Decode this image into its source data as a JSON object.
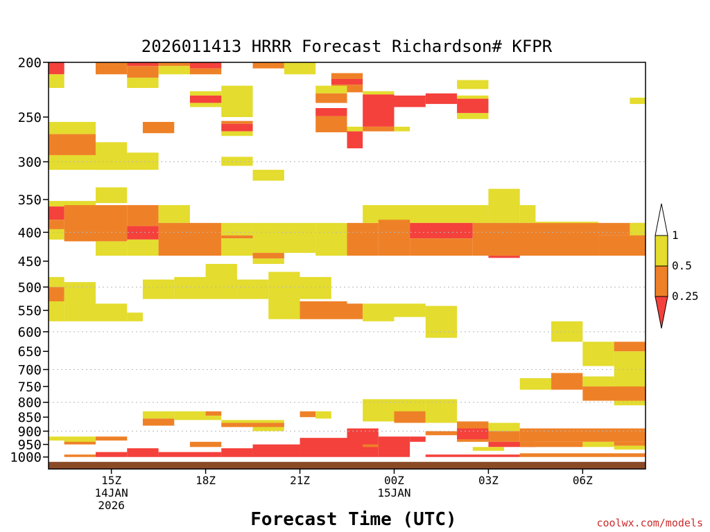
{
  "chart_data": {
    "type": "heatmap",
    "title": "2026011413 HRRR Forecast Richardson# KFPR",
    "xlabel": "Forecast Time (UTC)",
    "ylabel": "",
    "x_units": "forecast hour from 2026-01-14 13Z",
    "x_range": [
      13.0,
      32.0
    ],
    "y_axis": "pressure (hPa), inverted log",
    "y_range": [
      200,
      1050
    ],
    "y_ticks": [
      200,
      250,
      300,
      350,
      400,
      450,
      500,
      550,
      600,
      650,
      700,
      750,
      800,
      850,
      900,
      950,
      1000
    ],
    "y_tick_labels": [
      "200",
      "250",
      "300",
      "350",
      "400",
      "450",
      "500",
      "550",
      "600",
      "650",
      "700",
      "750",
      "800",
      "850",
      "900",
      "950",
      "1000"
    ],
    "y_gridlines": [
      300,
      400,
      500,
      600,
      700,
      800,
      900
    ],
    "x_ticks": [
      {
        "x": 15,
        "lines": [
          "15Z",
          "14JAN",
          "2026"
        ]
      },
      {
        "x": 18,
        "lines": [
          "18Z"
        ]
      },
      {
        "x": 21,
        "lines": [
          "21Z"
        ]
      },
      {
        "x": 24,
        "lines": [
          "00Z",
          "15JAN"
        ]
      },
      {
        "x": 27,
        "lines": [
          "03Z"
        ]
      },
      {
        "x": 30,
        "lines": [
          "06Z"
        ]
      }
    ],
    "legend": {
      "placement": "right",
      "labels": [
        "1",
        "0.5",
        "0.25"
      ],
      "bins": [
        {
          "name": "> 1",
          "color": "#ffffff"
        },
        {
          "name": "0.5 - 1",
          "color": "#e4dc2e"
        },
        {
          "name": "0.25 - 0.5",
          "color": "#ee8128"
        },
        {
          "name": "< 0.25",
          "color": "#f4413c"
        }
      ]
    },
    "colors": {
      "yellow": "#e4dc2e",
      "orange": "#ee8128",
      "red": "#f4413c",
      "surface": "#8a4a26"
    },
    "ground_pressure": 1020,
    "cells": [
      [
        13.0,
        13.5,
        200,
        210,
        "r"
      ],
      [
        13.0,
        13.5,
        210,
        222,
        "y"
      ],
      [
        14.5,
        15.5,
        200,
        210,
        "o"
      ],
      [
        15.5,
        16.5,
        200,
        203,
        "r"
      ],
      [
        15.5,
        16.5,
        203,
        213,
        "o"
      ],
      [
        15.5,
        16.5,
        213,
        222,
        "y"
      ],
      [
        16.5,
        17.5,
        200,
        203,
        "o"
      ],
      [
        16.5,
        17.5,
        203,
        210,
        "y"
      ],
      [
        17.5,
        18.5,
        200,
        205,
        "r"
      ],
      [
        17.5,
        18.5,
        205,
        210,
        "o"
      ],
      [
        19.5,
        20.5,
        200,
        205,
        "o"
      ],
      [
        20.5,
        21.5,
        200,
        210,
        "y"
      ],
      [
        22.0,
        23.0,
        209,
        214,
        "o"
      ],
      [
        22.0,
        23.0,
        214,
        219,
        "r"
      ],
      [
        22.0,
        23.0,
        219,
        226,
        "o"
      ],
      [
        21.5,
        22.5,
        220,
        227,
        "y"
      ],
      [
        18.5,
        19.5,
        220,
        250,
        "y"
      ],
      [
        17.5,
        18.5,
        225,
        229,
        "y"
      ],
      [
        17.5,
        18.5,
        229,
        236,
        "r"
      ],
      [
        17.5,
        18.5,
        236,
        240,
        "y"
      ],
      [
        21.5,
        22.5,
        227,
        236,
        "o"
      ],
      [
        23.0,
        24.0,
        225,
        228,
        "y"
      ],
      [
        23.0,
        24.0,
        228,
        260,
        "r"
      ],
      [
        24.0,
        25.0,
        229,
        240,
        "r"
      ],
      [
        25.0,
        26.0,
        227,
        237,
        "r"
      ],
      [
        26.0,
        27.0,
        215,
        223,
        "y"
      ],
      [
        26.0,
        27.0,
        229,
        232,
        "y"
      ],
      [
        26.0,
        27.0,
        232,
        246,
        "r"
      ],
      [
        26.0,
        27.0,
        246,
        252,
        "y"
      ],
      [
        31.5,
        32.0,
        231,
        237,
        "y"
      ],
      [
        21.5,
        22.5,
        241,
        249,
        "r"
      ],
      [
        21.5,
        22.5,
        249,
        266,
        "o"
      ],
      [
        18.5,
        19.5,
        254,
        257,
        "o"
      ],
      [
        18.5,
        19.5,
        257,
        265,
        "r"
      ],
      [
        18.5,
        19.5,
        265,
        270,
        "y"
      ],
      [
        13.0,
        14.5,
        255,
        268,
        "y"
      ],
      [
        13.0,
        14.5,
        268,
        292,
        "o"
      ],
      [
        14.0,
        14.5,
        292,
        292,
        "y"
      ],
      [
        16.0,
        17.0,
        255,
        267,
        "o"
      ],
      [
        22.5,
        23.0,
        260,
        265,
        "y"
      ],
      [
        22.5,
        23.0,
        265,
        284,
        "r"
      ],
      [
        23.0,
        24.0,
        260,
        265,
        "o"
      ],
      [
        24.0,
        24.5,
        260,
        265,
        "y"
      ],
      [
        14.5,
        15.5,
        277,
        310,
        "y"
      ],
      [
        13.0,
        15.5,
        292,
        310,
        "y"
      ],
      [
        15.5,
        16.5,
        289,
        310,
        "y"
      ],
      [
        18.5,
        19.5,
        294,
        305,
        "y"
      ],
      [
        19.5,
        20.5,
        310,
        324,
        "y"
      ],
      [
        14.5,
        15.5,
        333,
        355,
        "y"
      ],
      [
        13.0,
        14.5,
        352,
        360,
        "y"
      ],
      [
        13.0,
        13.5,
        360,
        380,
        "r"
      ],
      [
        13.0,
        13.5,
        380,
        395,
        "o"
      ],
      [
        13.0,
        13.5,
        395,
        412,
        "y"
      ],
      [
        13.5,
        15.5,
        358,
        415,
        "o"
      ],
      [
        15.5,
        16.5,
        358,
        390,
        "o"
      ],
      [
        15.5,
        16.5,
        390,
        412,
        "r"
      ],
      [
        15.5,
        16.5,
        412,
        440,
        "y"
      ],
      [
        14.5,
        15.5,
        415,
        440,
        "y"
      ],
      [
        16.5,
        17.5,
        358,
        385,
        "y"
      ],
      [
        16.5,
        18.5,
        385,
        440,
        "o"
      ],
      [
        18.5,
        19.5,
        385,
        405,
        "y"
      ],
      [
        18.5,
        19.5,
        405,
        410,
        "o"
      ],
      [
        18.5,
        19.5,
        410,
        440,
        "y"
      ],
      [
        19.5,
        21.5,
        385,
        435,
        "y"
      ],
      [
        19.5,
        20.5,
        435,
        445,
        "o"
      ],
      [
        19.5,
        20.5,
        445,
        455,
        "y"
      ],
      [
        21.5,
        22.5,
        385,
        440,
        "y"
      ],
      [
        22.5,
        23.5,
        385,
        440,
        "o"
      ],
      [
        23.0,
        27.0,
        358,
        385,
        "y"
      ],
      [
        27.0,
        28.0,
        335,
        385,
        "y"
      ],
      [
        28.0,
        28.5,
        358,
        385,
        "y"
      ],
      [
        23.5,
        24.5,
        380,
        440,
        "o"
      ],
      [
        24.5,
        26.5,
        385,
        410,
        "r"
      ],
      [
        24.5,
        26.5,
        410,
        440,
        "o"
      ],
      [
        26.5,
        30.5,
        385,
        440,
        "o"
      ],
      [
        28.5,
        30.5,
        383,
        385,
        "y"
      ],
      [
        30.5,
        32.0,
        385,
        405,
        "o"
      ],
      [
        31.5,
        32.0,
        385,
        405,
        "y"
      ],
      [
        30.5,
        32.0,
        405,
        440,
        "o"
      ],
      [
        27.0,
        28.0,
        440,
        444,
        "r"
      ],
      [
        18.0,
        19.0,
        455,
        500,
        "y"
      ],
      [
        17.0,
        18.0,
        480,
        525,
        "y"
      ],
      [
        16.0,
        17.0,
        485,
        525,
        "y"
      ],
      [
        18.0,
        19.0,
        480,
        525,
        "y"
      ],
      [
        19.0,
        20.0,
        485,
        525,
        "y"
      ],
      [
        20.0,
        21.0,
        470,
        570,
        "y"
      ],
      [
        21.0,
        22.0,
        480,
        525,
        "y"
      ],
      [
        13.0,
        13.5,
        480,
        500,
        "y"
      ],
      [
        13.0,
        13.5,
        500,
        530,
        "o"
      ],
      [
        13.0,
        13.5,
        530,
        575,
        "y"
      ],
      [
        13.5,
        14.5,
        490,
        575,
        "y"
      ],
      [
        14.5,
        15.5,
        535,
        575,
        "y"
      ],
      [
        15.5,
        16.0,
        555,
        575,
        "y"
      ],
      [
        21.0,
        22.5,
        530,
        570,
        "o"
      ],
      [
        22.5,
        23.0,
        535,
        570,
        "o"
      ],
      [
        23.0,
        24.0,
        535,
        575,
        "y"
      ],
      [
        24.0,
        25.0,
        535,
        565,
        "y"
      ],
      [
        25.0,
        26.0,
        540,
        615,
        "y"
      ],
      [
        29.0,
        30.0,
        575,
        625,
        "y"
      ],
      [
        30.0,
        31.0,
        625,
        690,
        "y"
      ],
      [
        31.0,
        32.0,
        625,
        650,
        "o"
      ],
      [
        31.0,
        32.0,
        650,
        810,
        "y"
      ],
      [
        28.0,
        29.0,
        725,
        760,
        "y"
      ],
      [
        29.0,
        30.0,
        710,
        760,
        "o"
      ],
      [
        30.0,
        31.0,
        720,
        750,
        "y"
      ],
      [
        30.0,
        32.0,
        750,
        795,
        "o"
      ],
      [
        16.0,
        17.0,
        830,
        855,
        "y"
      ],
      [
        16.0,
        17.0,
        855,
        880,
        "o"
      ],
      [
        17.0,
        18.0,
        830,
        860,
        "y"
      ],
      [
        18.0,
        18.5,
        830,
        845,
        "o"
      ],
      [
        18.0,
        18.5,
        845,
        860,
        "y"
      ],
      [
        18.5,
        20.5,
        860,
        870,
        "y"
      ],
      [
        18.5,
        19.0,
        870,
        885,
        "o"
      ],
      [
        19.0,
        20.5,
        870,
        885,
        "o"
      ],
      [
        19.5,
        20.5,
        885,
        900,
        "y"
      ],
      [
        21.0,
        21.5,
        830,
        850,
        "o"
      ],
      [
        21.5,
        22.0,
        830,
        855,
        "y"
      ],
      [
        23.0,
        25.0,
        790,
        865,
        "y"
      ],
      [
        24.0,
        25.0,
        830,
        870,
        "o"
      ],
      [
        25.0,
        26.0,
        790,
        870,
        "y"
      ],
      [
        26.0,
        27.0,
        865,
        940,
        "o"
      ],
      [
        26.0,
        27.0,
        890,
        930,
        "r"
      ],
      [
        27.0,
        28.0,
        870,
        900,
        "y"
      ],
      [
        27.0,
        28.0,
        900,
        940,
        "o"
      ],
      [
        27.0,
        28.5,
        940,
        960,
        "r"
      ],
      [
        28.0,
        32.0,
        890,
        940,
        "o"
      ],
      [
        28.0,
        30.0,
        940,
        960,
        "o"
      ],
      [
        30.0,
        31.0,
        940,
        960,
        "y"
      ],
      [
        31.0,
        32.0,
        940,
        955,
        "o"
      ],
      [
        31.0,
        32.0,
        955,
        970,
        "y"
      ],
      [
        13.0,
        13.5,
        920,
        935,
        "y"
      ],
      [
        13.5,
        14.5,
        920,
        950,
        "y"
      ],
      [
        13.5,
        14.5,
        940,
        950,
        "o"
      ],
      [
        14.5,
        15.5,
        920,
        935,
        "o"
      ],
      [
        17.5,
        18.5,
        940,
        960,
        "o"
      ],
      [
        22.5,
        23.5,
        890,
        1000,
        "r"
      ],
      [
        23.0,
        24.0,
        950,
        960,
        "o"
      ],
      [
        23.5,
        24.5,
        920,
        1000,
        "r"
      ],
      [
        24.5,
        25.0,
        920,
        940,
        "r"
      ],
      [
        25.0,
        26.0,
        900,
        915,
        "o"
      ],
      [
        26.5,
        27.5,
        960,
        975,
        "y"
      ],
      [
        13.5,
        14.5,
        990,
        1000,
        "o"
      ],
      [
        14.5,
        15.5,
        980,
        1000,
        "r"
      ],
      [
        15.5,
        16.5,
        965,
        1000,
        "r"
      ],
      [
        16.5,
        18.5,
        980,
        1000,
        "r"
      ],
      [
        18.5,
        19.5,
        965,
        1000,
        "r"
      ],
      [
        19.5,
        21.0,
        950,
        1000,
        "r"
      ],
      [
        21.0,
        22.5,
        925,
        1000,
        "r"
      ],
      [
        25.0,
        28.0,
        990,
        1000,
        "r"
      ],
      [
        28.0,
        32.0,
        985,
        1000,
        "o"
      ]
    ]
  },
  "footer": {
    "credit": "coolwx.com/models"
  }
}
